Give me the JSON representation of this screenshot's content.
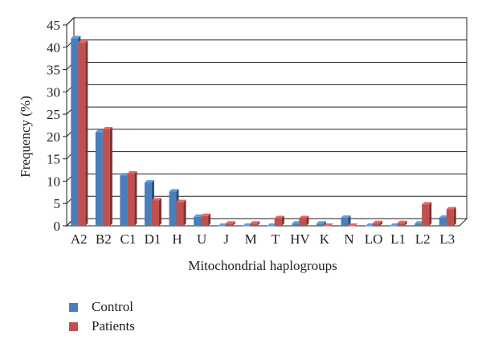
{
  "chart_data": {
    "type": "bar",
    "title": "",
    "xlabel": "Mitochondrial haplogroups",
    "ylabel": "Frequency (%)",
    "ylim": [
      0,
      45
    ],
    "yticks": [
      "0",
      "5",
      "10",
      "15",
      "20",
      "25",
      "30",
      "35",
      "40",
      "45"
    ],
    "grid": true,
    "legend_position": "bottom-left",
    "categories": [
      "A2",
      "B2",
      "C1",
      "D1",
      "H",
      "U",
      "J",
      "M",
      "T",
      "HV",
      "K",
      "N",
      "LO",
      "L1",
      "L2",
      "L3"
    ],
    "series": [
      {
        "name": "Control",
        "color": "#4a7ebb",
        "values": [
          42.0,
          21.0,
          11.3,
          9.7,
          7.7,
          2.0,
          0.0,
          0.0,
          0.0,
          0.5,
          0.5,
          1.8,
          0.0,
          0.0,
          0.5,
          1.8
        ]
      },
      {
        "name": "Patients",
        "color": "#c0504d",
        "values": [
          41.0,
          21.6,
          11.7,
          5.7,
          5.3,
          2.2,
          0.5,
          0.5,
          1.7,
          1.7,
          0.0,
          0.0,
          0.6,
          0.6,
          4.8,
          3.7
        ]
      }
    ]
  }
}
